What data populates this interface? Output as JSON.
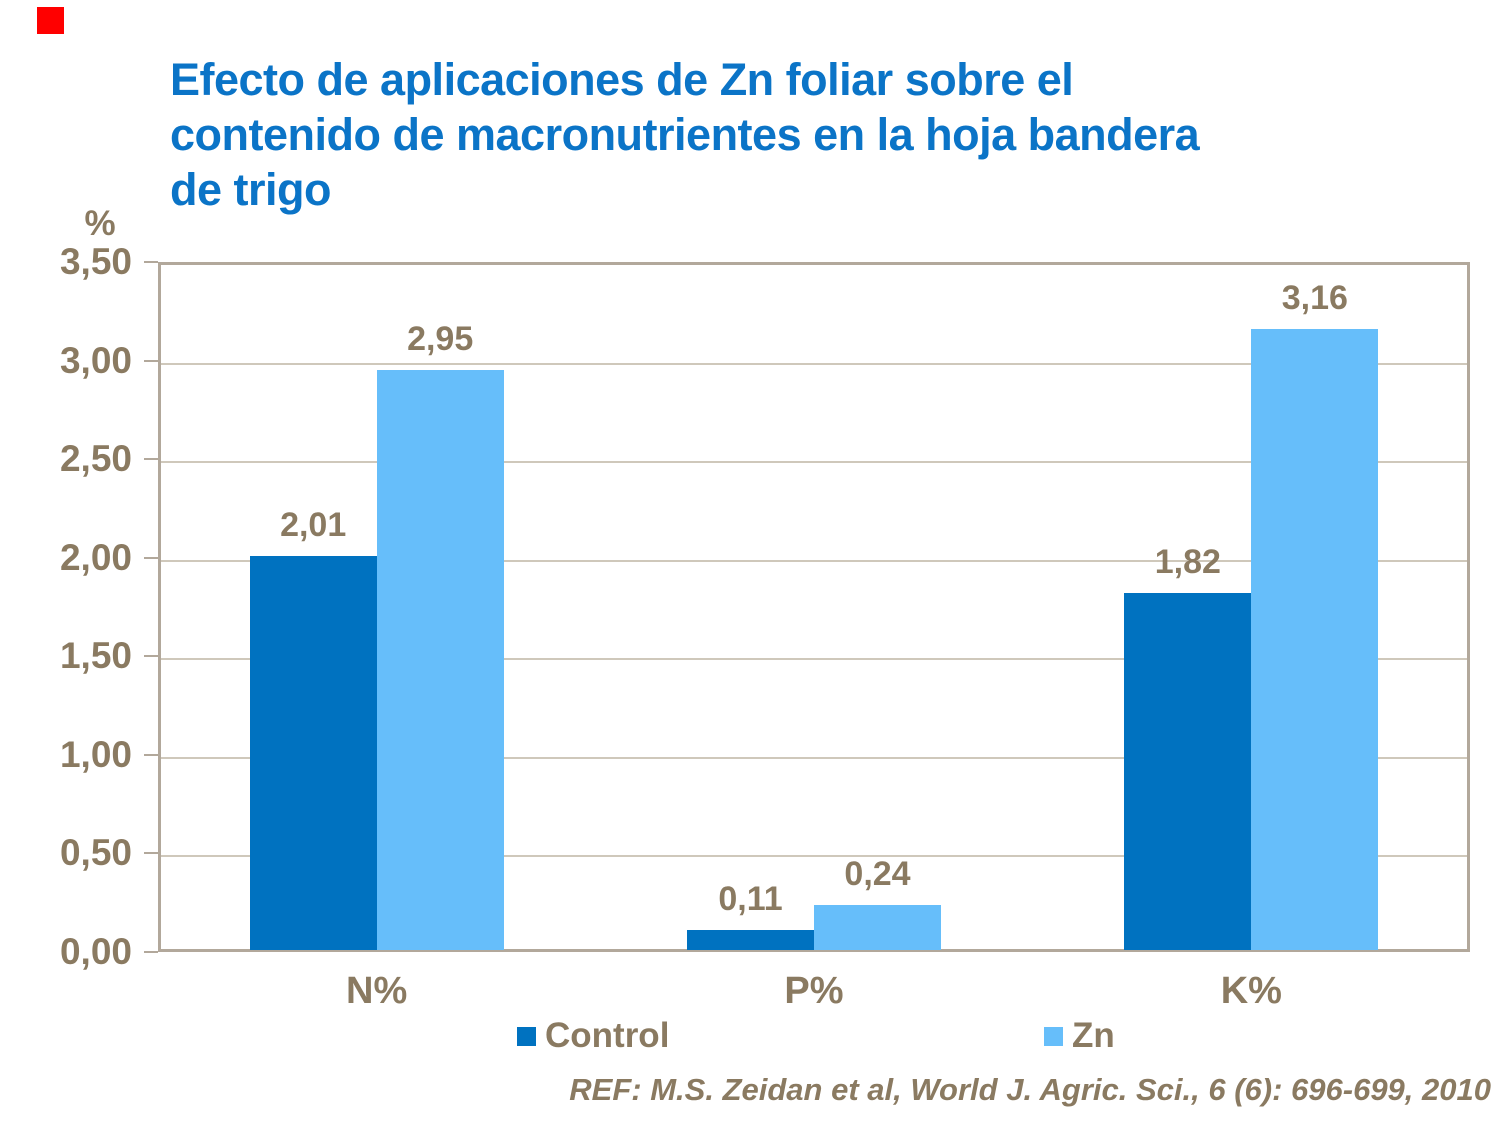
{
  "marker": {
    "color": "#ff0000"
  },
  "title": {
    "lines": [
      "Efecto de aplicaciones de Zn foliar sobre el",
      "contenido de macronutrientes en la hoja bandera",
      "de trigo"
    ],
    "color": "#0b74c7"
  },
  "chart_data": {
    "type": "bar",
    "title": "Efecto de aplicaciones de Zn foliar sobre el contenido de macronutrientes en la hoja bandera de trigo",
    "xlabel": "",
    "ylabel": "%",
    "ylim": [
      0,
      3.5
    ],
    "grid": true,
    "legend_position": "bottom",
    "categories": [
      "N%",
      "P%",
      "K%"
    ],
    "series": [
      {
        "name": "Control",
        "color": "#0072c0",
        "values": [
          2.01,
          0.11,
          1.82
        ],
        "labels": [
          "2,01",
          "0,11",
          "1,82"
        ]
      },
      {
        "name": "Zn",
        "color": "#66befa",
        "values": [
          2.95,
          0.24,
          3.16
        ],
        "labels": [
          "2,95",
          "0,24",
          "3,16"
        ]
      }
    ],
    "yticks": [
      {
        "v": 0.0,
        "label": "0,00"
      },
      {
        "v": 0.5,
        "label": "0,50"
      },
      {
        "v": 1.0,
        "label": "1,00"
      },
      {
        "v": 1.5,
        "label": "1,50"
      },
      {
        "v": 2.0,
        "label": "2,00"
      },
      {
        "v": 2.5,
        "label": "2,50"
      },
      {
        "v": 3.0,
        "label": "3,00"
      },
      {
        "v": 3.5,
        "label": "3,50"
      }
    ]
  },
  "footer": {
    "ref": "REF: M.S. Zeidan et al, World J. Agric. Sci., 6 (6): 696-699, 2010"
  },
  "colors": {
    "text": "#8a7a61",
    "grid": "#cfc8bb",
    "border": "#b2a89b"
  }
}
